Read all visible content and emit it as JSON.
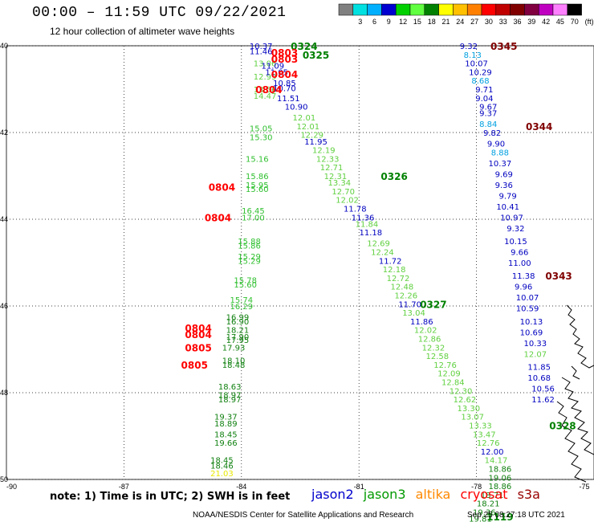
{
  "title": "00:00 – 11:59 UTC 09/22/2021",
  "subtitle": "12 hour collection of altimeter wave heights",
  "legend": {
    "unit": "(ft)",
    "bins": [
      {
        "label": "",
        "color": "#808080"
      },
      {
        "label": "3",
        "color": "#00e0e0"
      },
      {
        "label": "6",
        "color": "#00b0ff"
      },
      {
        "label": "9",
        "color": "#0000d0"
      },
      {
        "label": "12",
        "color": "#00d000"
      },
      {
        "label": "15",
        "color": "#60ff40"
      },
      {
        "label": "18",
        "color": "#008000"
      },
      {
        "label": "21",
        "color": "#ffff00"
      },
      {
        "label": "24",
        "color": "#ffc000"
      },
      {
        "label": "27",
        "color": "#ff8000"
      },
      {
        "label": "30",
        "color": "#ff0000"
      },
      {
        "label": "33",
        "color": "#c00000"
      },
      {
        "label": "36",
        "color": "#800000"
      },
      {
        "label": "39",
        "color": "#800040"
      },
      {
        "label": "42",
        "color": "#c000c0"
      },
      {
        "label": "45",
        "color": "#ff80ff"
      },
      {
        "label": "70",
        "color": "#000000"
      }
    ]
  },
  "axes": {
    "lat_labels": [
      "40",
      "42",
      "44",
      "46",
      "48",
      "50"
    ],
    "lon_labels": [
      "-90",
      "-87",
      "-84",
      "-81",
      "-78",
      "-75"
    ]
  },
  "tracks": [
    {
      "name": "west-track",
      "points": [
        {
          "lon": -83.4,
          "lat": -40.4,
          "v": "13.06",
          "c": "#60d040"
        },
        {
          "lon": -83.4,
          "lat": -40.7,
          "v": "12.99",
          "c": "#60d040"
        },
        {
          "lon": -83.4,
          "lat": -41.0,
          "v": "13.56",
          "c": "#60d040"
        },
        {
          "lon": -83.4,
          "lat": -41.15,
          "v": "14.47",
          "c": "#60d040"
        },
        {
          "lon": -83.5,
          "lat": -41.9,
          "v": "15.05",
          "c": "#30c030"
        },
        {
          "lon": -83.5,
          "lat": -42.1,
          "v": "15.30",
          "c": "#30c030"
        },
        {
          "lon": -83.6,
          "lat": -42.6,
          "v": "15.16",
          "c": "#30c030"
        },
        {
          "lon": -83.6,
          "lat": -43.0,
          "v": "15.86",
          "c": "#30c030"
        },
        {
          "lon": -83.6,
          "lat": -43.2,
          "v": "15.95",
          "c": "#30c030"
        },
        {
          "lon": -83.6,
          "lat": -43.3,
          "v": "15.60",
          "c": "#30c030"
        },
        {
          "lon": -83.7,
          "lat": -43.8,
          "v": "16.45",
          "c": "#30c030"
        },
        {
          "lon": -83.7,
          "lat": -43.95,
          "v": "17.00",
          "c": "#30c030"
        },
        {
          "lon": -83.8,
          "lat": -44.5,
          "v": "15.88",
          "c": "#30c030"
        },
        {
          "lon": -83.8,
          "lat": -44.6,
          "v": "15.86",
          "c": "#30c030"
        },
        {
          "lon": -83.8,
          "lat": -44.85,
          "v": "15.29",
          "c": "#30c030"
        },
        {
          "lon": -83.8,
          "lat": -44.95,
          "v": "15.29",
          "c": "#30c030"
        },
        {
          "lon": -83.9,
          "lat": -45.4,
          "v": "15.78",
          "c": "#30c030"
        },
        {
          "lon": -83.9,
          "lat": -45.5,
          "v": "15.60",
          "c": "#30c030"
        },
        {
          "lon": -84.0,
          "lat": -45.85,
          "v": "15.74",
          "c": "#30c030"
        },
        {
          "lon": -84.0,
          "lat": -46.0,
          "v": "16.29",
          "c": "#30c030"
        },
        {
          "lon": -84.1,
          "lat": -46.25,
          "v": "16.99",
          "c": "#108010"
        },
        {
          "lon": -84.1,
          "lat": -46.35,
          "v": "16.90",
          "c": "#108010"
        },
        {
          "lon": -84.1,
          "lat": -46.55,
          "v": "18.21",
          "c": "#108010"
        },
        {
          "lon": -84.1,
          "lat": -46.7,
          "v": "17.90",
          "c": "#108010"
        },
        {
          "lon": -84.1,
          "lat": -46.78,
          "v": "17.95",
          "c": "#108010"
        },
        {
          "lon": -84.2,
          "lat": -46.95,
          "v": "17.93",
          "c": "#108010"
        },
        {
          "lon": -84.2,
          "lat": -47.25,
          "v": "18.10",
          "c": "#108010"
        },
        {
          "lon": -84.2,
          "lat": -47.35,
          "v": "18.48",
          "c": "#108010"
        },
        {
          "lon": -84.3,
          "lat": -47.85,
          "v": "18.63",
          "c": "#108010"
        },
        {
          "lon": -84.3,
          "lat": -48.05,
          "v": "18.97",
          "c": "#108010"
        },
        {
          "lon": -84.3,
          "lat": -48.15,
          "v": "18.97",
          "c": "#108010"
        },
        {
          "lon": -84.4,
          "lat": -48.55,
          "v": "19.37",
          "c": "#108010"
        },
        {
          "lon": -84.4,
          "lat": -48.7,
          "v": "18.89",
          "c": "#108010"
        },
        {
          "lon": -84.4,
          "lat": -48.95,
          "v": "18.45",
          "c": "#108010"
        },
        {
          "lon": -84.4,
          "lat": -49.15,
          "v": "19.66",
          "c": "#108010"
        },
        {
          "lon": -84.5,
          "lat": -49.55,
          "v": "18.45",
          "c": "#108010"
        },
        {
          "lon": -84.5,
          "lat": -49.68,
          "v": "18.46",
          "c": "#108010"
        },
        {
          "lon": -84.5,
          "lat": -49.85,
          "v": "21.03",
          "c": "#e8e800"
        }
      ]
    },
    {
      "name": "diagonal-track",
      "points": [
        {
          "lon": -83.5,
          "lat": -40.0,
          "v": "10.37",
          "c": "#0000c0"
        },
        {
          "lon": -83.5,
          "lat": -40.12,
          "v": "11.46",
          "c": "#0000c0"
        },
        {
          "lon": -83.2,
          "lat": -40.45,
          "v": "11.09",
          "c": "#0000c0"
        },
        {
          "lon": -83.1,
          "lat": -40.6,
          "v": "11.05",
          "c": "#0000c0"
        },
        {
          "lon": -82.9,
          "lat": -40.85,
          "v": "10.85",
          "c": "#0000c0"
        },
        {
          "lon": -82.9,
          "lat": -40.97,
          "v": "10.70",
          "c": "#0000c0"
        },
        {
          "lon": -82.8,
          "lat": -41.2,
          "v": "11.51",
          "c": "#0000c0"
        },
        {
          "lon": -82.6,
          "lat": -41.4,
          "v": "10.90",
          "c": "#0000c0"
        },
        {
          "lon": -82.4,
          "lat": -41.65,
          "v": "12.01",
          "c": "#60d040"
        },
        {
          "lon": -82.3,
          "lat": -41.85,
          "v": "12.01",
          "c": "#60d040"
        },
        {
          "lon": -82.2,
          "lat": -42.05,
          "v": "12.29",
          "c": "#60d040"
        },
        {
          "lon": -82.1,
          "lat": -42.2,
          "v": "11.95",
          "c": "#0000c0"
        },
        {
          "lon": -81.9,
          "lat": -42.4,
          "v": "12.19",
          "c": "#60d040"
        },
        {
          "lon": -81.8,
          "lat": -42.6,
          "v": "12.33",
          "c": "#60d040"
        },
        {
          "lon": -81.7,
          "lat": -42.8,
          "v": "12.71",
          "c": "#60d040"
        },
        {
          "lon": -81.6,
          "lat": -43.0,
          "v": "12.31",
          "c": "#60d040"
        },
        {
          "lon": -81.5,
          "lat": -43.15,
          "v": "13.34",
          "c": "#60d040"
        },
        {
          "lon": -81.4,
          "lat": -43.35,
          "v": "12.70",
          "c": "#60d040"
        },
        {
          "lon": -81.3,
          "lat": -43.55,
          "v": "12.02",
          "c": "#60d040"
        },
        {
          "lon": -81.1,
          "lat": -43.75,
          "v": "11.78",
          "c": "#0000c0"
        },
        {
          "lon": -80.9,
          "lat": -43.95,
          "v": "11.36",
          "c": "#0000c0"
        },
        {
          "lon": -80.8,
          "lat": -44.1,
          "v": "11.84",
          "c": "#60d040"
        },
        {
          "lon": -80.7,
          "lat": -44.3,
          "v": "11.18",
          "c": "#0000c0"
        },
        {
          "lon": -80.5,
          "lat": -44.55,
          "v": "12.69",
          "c": "#60d040"
        },
        {
          "lon": -80.4,
          "lat": -44.75,
          "v": "12.24",
          "c": "#60d040"
        },
        {
          "lon": -80.2,
          "lat": -44.95,
          "v": "11.72",
          "c": "#0000c0"
        },
        {
          "lon": -80.1,
          "lat": -45.15,
          "v": "12.18",
          "c": "#60d040"
        },
        {
          "lon": -80.0,
          "lat": -45.35,
          "v": "12.72",
          "c": "#60d040"
        },
        {
          "lon": -79.9,
          "lat": -45.55,
          "v": "12.48",
          "c": "#60d040"
        },
        {
          "lon": -79.8,
          "lat": -45.75,
          "v": "12.26",
          "c": "#60d040"
        },
        {
          "lon": -79.7,
          "lat": -45.95,
          "v": "11.70",
          "c": "#0000c0"
        },
        {
          "lon": -79.6,
          "lat": -46.15,
          "v": "13.04",
          "c": "#60d040"
        },
        {
          "lon": -79.4,
          "lat": -46.35,
          "v": "11.86",
          "c": "#0000c0"
        },
        {
          "lon": -79.3,
          "lat": -46.55,
          "v": "12.02",
          "c": "#60d040"
        },
        {
          "lon": -79.2,
          "lat": -46.75,
          "v": "12.86",
          "c": "#60d040"
        },
        {
          "lon": -79.1,
          "lat": -46.95,
          "v": "12.32",
          "c": "#60d040"
        },
        {
          "lon": -79.0,
          "lat": -47.15,
          "v": "12.58",
          "c": "#60d040"
        },
        {
          "lon": -78.8,
          "lat": -47.35,
          "v": "12.76",
          "c": "#60d040"
        },
        {
          "lon": -78.7,
          "lat": -47.55,
          "v": "12.09",
          "c": "#60d040"
        },
        {
          "lon": -78.6,
          "lat": -47.75,
          "v": "12.84",
          "c": "#60d040"
        },
        {
          "lon": -78.4,
          "lat": -47.95,
          "v": "12.30",
          "c": "#60d040"
        },
        {
          "lon": -78.3,
          "lat": -48.15,
          "v": "12.62",
          "c": "#60d040"
        },
        {
          "lon": -78.2,
          "lat": -48.35,
          "v": "13.30",
          "c": "#60d040"
        },
        {
          "lon": -78.1,
          "lat": -48.55,
          "v": "13.07",
          "c": "#60d040"
        },
        {
          "lon": -77.9,
          "lat": -48.75,
          "v": "13.33",
          "c": "#60d040"
        },
        {
          "lon": -77.8,
          "lat": -48.95,
          "v": "13.47",
          "c": "#60d040"
        },
        {
          "lon": -77.7,
          "lat": -49.15,
          "v": "12.76",
          "c": "#60d040"
        },
        {
          "lon": -77.6,
          "lat": -49.35,
          "v": "12.00",
          "c": "#0000c0"
        },
        {
          "lon": -77.5,
          "lat": -49.55,
          "v": "14.17",
          "c": "#60d040"
        },
        {
          "lon": -77.4,
          "lat": -49.75,
          "v": "18.86",
          "c": "#108010"
        },
        {
          "lon": -77.4,
          "lat": -49.95,
          "v": "19.06",
          "c": "#108010"
        },
        {
          "lon": -77.4,
          "lat": -50.15,
          "v": "18.86",
          "c": "#108010"
        },
        {
          "lon": -77.6,
          "lat": -50.35,
          "v": "18.71",
          "c": "#108010"
        },
        {
          "lon": -77.7,
          "lat": -50.55,
          "v": "18.21",
          "c": "#108010"
        },
        {
          "lon": -77.8,
          "lat": -50.75,
          "v": "19.36",
          "c": "#108010"
        },
        {
          "lon": -77.9,
          "lat": -50.9,
          "v": "19.81",
          "c": "#108010"
        }
      ]
    },
    {
      "name": "east-track",
      "points": [
        {
          "lon": -78.2,
          "lat": -40.0,
          "v": "9.32",
          "c": "#0000c0"
        },
        {
          "lon": -78.1,
          "lat": -40.2,
          "v": "8.13",
          "c": "#00a0e0"
        },
        {
          "lon": -78.0,
          "lat": -40.4,
          "v": "10.07",
          "c": "#0000c0"
        },
        {
          "lon": -77.9,
          "lat": -40.6,
          "v": "10.29",
          "c": "#0000c0"
        },
        {
          "lon": -77.9,
          "lat": -40.8,
          "v": "8.68",
          "c": "#00a0e0"
        },
        {
          "lon": -77.8,
          "lat": -41.0,
          "v": "9.71",
          "c": "#0000c0"
        },
        {
          "lon": -77.8,
          "lat": -41.2,
          "v": "9.04",
          "c": "#0000c0"
        },
        {
          "lon": -77.7,
          "lat": -41.4,
          "v": "9.67",
          "c": "#0000c0"
        },
        {
          "lon": -77.7,
          "lat": -41.55,
          "v": "9.37",
          "c": "#0000c0"
        },
        {
          "lon": -77.7,
          "lat": -41.8,
          "v": "8.84",
          "c": "#00a0e0"
        },
        {
          "lon": -77.6,
          "lat": -42.0,
          "v": "9.82",
          "c": "#0000c0"
        },
        {
          "lon": -77.5,
          "lat": -42.25,
          "v": "9.90",
          "c": "#0000c0"
        },
        {
          "lon": -77.4,
          "lat": -42.45,
          "v": "8.88",
          "c": "#00a0e0"
        },
        {
          "lon": -77.4,
          "lat": -42.7,
          "v": "10.37",
          "c": "#0000c0"
        },
        {
          "lon": -77.3,
          "lat": -42.95,
          "v": "9.69",
          "c": "#0000c0"
        },
        {
          "lon": -77.3,
          "lat": -43.2,
          "v": "9.36",
          "c": "#0000c0"
        },
        {
          "lon": -77.2,
          "lat": -43.45,
          "v": "9.79",
          "c": "#0000c0"
        },
        {
          "lon": -77.2,
          "lat": -43.7,
          "v": "10.41",
          "c": "#0000c0"
        },
        {
          "lon": -77.1,
          "lat": -43.95,
          "v": "10.97",
          "c": "#0000c0"
        },
        {
          "lon": -77.0,
          "lat": -44.2,
          "v": "9.32",
          "c": "#0000c0"
        },
        {
          "lon": -77.0,
          "lat": -44.5,
          "v": "10.15",
          "c": "#0000c0"
        },
        {
          "lon": -76.9,
          "lat": -44.75,
          "v": "9.66",
          "c": "#0000c0"
        },
        {
          "lon": -76.9,
          "lat": -45.0,
          "v": "11.00",
          "c": "#0000c0"
        },
        {
          "lon": -76.8,
          "lat": -45.3,
          "v": "11.38",
          "c": "#0000c0"
        },
        {
          "lon": -76.8,
          "lat": -45.55,
          "v": "9.96",
          "c": "#0000c0"
        },
        {
          "lon": -76.7,
          "lat": -45.8,
          "v": "10.07",
          "c": "#0000c0"
        },
        {
          "lon": -76.7,
          "lat": -46.05,
          "v": "10.59",
          "c": "#0000c0"
        },
        {
          "lon": -76.6,
          "lat": -46.35,
          "v": "10.13",
          "c": "#0000c0"
        },
        {
          "lon": -76.6,
          "lat": -46.6,
          "v": "10.69",
          "c": "#0000c0"
        },
        {
          "lon": -76.5,
          "lat": -46.85,
          "v": "10.33",
          "c": "#0000c0"
        },
        {
          "lon": -76.5,
          "lat": -47.1,
          "v": "12.07",
          "c": "#60d040"
        },
        {
          "lon": -76.4,
          "lat": -47.4,
          "v": "11.85",
          "c": "#0000c0"
        },
        {
          "lon": -76.4,
          "lat": -47.65,
          "v": "10.68",
          "c": "#0000c0"
        },
        {
          "lon": -76.3,
          "lat": -47.9,
          "v": "10.56",
          "c": "#0000c0"
        },
        {
          "lon": -76.3,
          "lat": -48.15,
          "v": "11.62",
          "c": "#0000c0"
        }
      ]
    }
  ],
  "passes": [
    {
      "label": "0324",
      "lon": -82.4,
      "lat": -40.0,
      "c": "#008000"
    },
    {
      "label": "0803",
      "lon": -82.9,
      "lat": -40.15,
      "c": "#ff0000"
    },
    {
      "label": "0325",
      "lon": -82.1,
      "lat": -40.2,
      "c": "#008000"
    },
    {
      "label": "0803",
      "lon": -82.9,
      "lat": -40.3,
      "c": "#ff0000"
    },
    {
      "label": "0804",
      "lon": -82.9,
      "lat": -40.65,
      "c": "#ff0000"
    },
    {
      "label": "0804",
      "lon": -83.3,
      "lat": -41.0,
      "c": "#ff0000"
    },
    {
      "label": "0345",
      "lon": -77.3,
      "lat": -40.0,
      "c": "#800000"
    },
    {
      "label": "0344",
      "lon": -76.4,
      "lat": -41.85,
      "c": "#800000"
    },
    {
      "label": "0326",
      "lon": -80.1,
      "lat": -43.0,
      "c": "#008000"
    },
    {
      "label": "0804",
      "lon": -84.5,
      "lat": -43.25,
      "c": "#ff0000"
    },
    {
      "label": "0804",
      "lon": -84.6,
      "lat": -43.95,
      "c": "#ff0000"
    },
    {
      "label": "0343",
      "lon": -75.9,
      "lat": -45.3,
      "c": "#800000"
    },
    {
      "label": "0327",
      "lon": -79.1,
      "lat": -45.95,
      "c": "#008000"
    },
    {
      "label": "0804",
      "lon": -85.1,
      "lat": -46.5,
      "c": "#ff0000"
    },
    {
      "label": "0804",
      "lon": -85.1,
      "lat": -46.65,
      "c": "#ff0000"
    },
    {
      "label": "0805",
      "lon": -85.1,
      "lat": -46.95,
      "c": "#ff0000"
    },
    {
      "label": "0805",
      "lon": -85.2,
      "lat": -47.35,
      "c": "#ff0000"
    },
    {
      "label": "0328",
      "lon": -75.8,
      "lat": -48.75,
      "c": "#008000"
    },
    {
      "label": "1119",
      "lon": -77.4,
      "lat": -50.85,
      "c": "#008000"
    }
  ],
  "footer": {
    "note": "note: 1) Time is in UTC; 2) SWH is in feet",
    "satellites": [
      {
        "name": "jason2",
        "color": "#0000cc"
      },
      {
        "name": "jason3",
        "color": "#009900"
      },
      {
        "name": "altika",
        "color": "#ff8800"
      },
      {
        "name": "cryosat",
        "color": "#ff0000"
      },
      {
        "name": "s3a",
        "color": "#990000"
      }
    ],
    "credit": "NOAA/NESDIS Center for Satellite Applications and Research",
    "timestamp": "Sep 25 08:27:18 UTC 2021"
  }
}
